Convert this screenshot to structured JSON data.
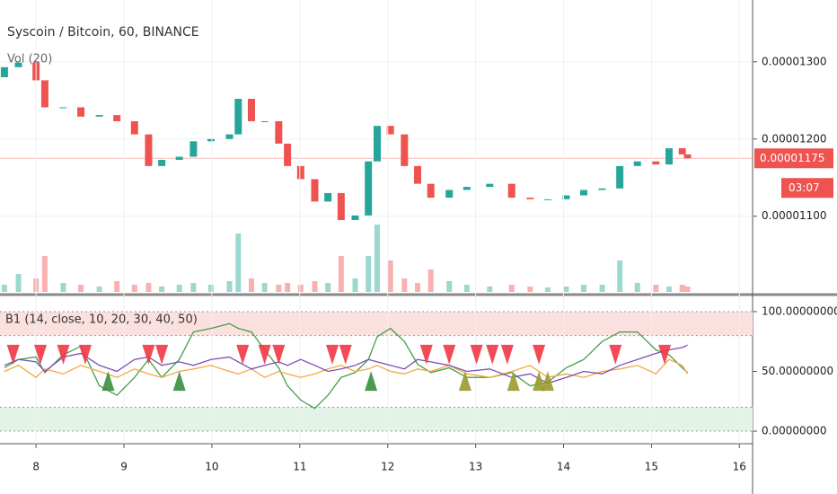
{
  "chart_data": [
    {
      "type": "candlestick",
      "title": "Syscoin / Bitcoin, 60, BINANCE",
      "subtitle": "Vol (20)",
      "xlim": [
        7.59,
        16.15
      ],
      "ylim": [
        1.002e-05,
        1.38e-05
      ],
      "yticks": [
        {
          "value": 1.1e-05,
          "label": "0.00001100"
        },
        {
          "value": 1.2e-05,
          "label": "0.00001200"
        },
        {
          "value": 1.3e-05,
          "label": "0.00001300"
        }
      ],
      "grid": true,
      "up_color": "#26a69a",
      "down_color": "#ef5350",
      "last_price": {
        "value": 1.175e-05,
        "label": "0.00001175"
      },
      "countdown": "03:07",
      "x": [
        7.64,
        7.8,
        8.0,
        8.1,
        8.31,
        8.51,
        8.72,
        8.92,
        9.12,
        9.28,
        9.43,
        9.63,
        9.79,
        9.99,
        10.2,
        10.3,
        10.45,
        10.6,
        10.76,
        10.86,
        11.01,
        11.17,
        11.32,
        11.47,
        11.63,
        11.78,
        11.88,
        12.03,
        12.19,
        12.34,
        12.49,
        12.7,
        12.9,
        13.16,
        13.41,
        13.62,
        13.82,
        14.03,
        14.23,
        14.44,
        14.64,
        14.84,
        15.05,
        15.2,
        15.35,
        15.41
      ],
      "open": [
        1.28e-05,
        1.293e-05,
        1.299e-05,
        1.276e-05,
        1.241e-05,
        1.241e-05,
        1.229e-05,
        1.231e-05,
        1.223e-05,
        1.206e-05,
        1.165e-05,
        1.173e-05,
        1.177e-05,
        1.197e-05,
        1.2e-05,
        1.206e-05,
        1.252e-05,
        1.223e-05,
        1.223e-05,
        1.194e-05,
        1.165e-05,
        1.148e-05,
        1.119e-05,
        1.13e-05,
        1.095e-05,
        1.101e-05,
        1.171e-05,
        1.217e-05,
        1.206e-05,
        1.165e-05,
        1.142e-05,
        1.124e-05,
        1.134e-05,
        1.138e-05,
        1.142e-05,
        1.124e-05,
        1.122e-05,
        1.122e-05,
        1.127e-05,
        1.134e-05,
        1.136e-05,
        1.165e-05,
        1.171e-05,
        1.167e-05,
        1.188e-05,
        1.18e-05
      ],
      "close": [
        1.293e-05,
        1.299e-05,
        1.276e-05,
        1.241e-05,
        1.241e-05,
        1.229e-05,
        1.231e-05,
        1.223e-05,
        1.206e-05,
        1.165e-05,
        1.173e-05,
        1.177e-05,
        1.197e-05,
        1.2e-05,
        1.206e-05,
        1.252e-05,
        1.223e-05,
        1.223e-05,
        1.194e-05,
        1.165e-05,
        1.148e-05,
        1.119e-05,
        1.13e-05,
        1.095e-05,
        1.101e-05,
        1.171e-05,
        1.217e-05,
        1.206e-05,
        1.165e-05,
        1.142e-05,
        1.124e-05,
        1.134e-05,
        1.138e-05,
        1.142e-05,
        1.124e-05,
        1.122e-05,
        1.122e-05,
        1.127e-05,
        1.134e-05,
        1.136e-05,
        1.165e-05,
        1.171e-05,
        1.167e-05,
        1.188e-05,
        1.18e-05,
        1.175e-05
      ],
      "volume": [
        8,
        20,
        15,
        40,
        10,
        8,
        6,
        12,
        8,
        10,
        6,
        8,
        10,
        8,
        12,
        65,
        15,
        10,
        8,
        10,
        8,
        12,
        10,
        40,
        15,
        40,
        75,
        35,
        15,
        10,
        25,
        12,
        8,
        6,
        8,
        6,
        5,
        6,
        8,
        8,
        35,
        10,
        8,
        6,
        8,
        6
      ],
      "volume_lim": [
        0,
        100
      ]
    },
    {
      "type": "line",
      "title": "B1 (14, close, 10, 20, 30, 40, 50)",
      "xlim": [
        7.59,
        16.15
      ],
      "xticks": [
        8,
        9,
        10,
        11,
        12,
        13,
        14,
        15,
        16
      ],
      "ylim": [
        -9,
        110.5
      ],
      "yticks": [
        {
          "value": 0,
          "label": "0.00000000"
        },
        {
          "value": 50,
          "label": "50.00000000"
        },
        {
          "value": 100,
          "label": "100.00000000"
        }
      ],
      "bands": [
        {
          "from": 80,
          "to": 100,
          "color": "#fbe0e0"
        },
        {
          "from": 0,
          "to": 20,
          "color": "#e3f3e5"
        }
      ],
      "x": [
        7.64,
        7.8,
        8.0,
        8.1,
        8.31,
        8.51,
        8.72,
        8.92,
        9.12,
        9.28,
        9.43,
        9.63,
        9.79,
        9.99,
        10.2,
        10.3,
        10.45,
        10.6,
        10.76,
        10.86,
        11.01,
        11.17,
        11.32,
        11.47,
        11.63,
        11.78,
        11.88,
        12.03,
        12.19,
        12.34,
        12.49,
        12.7,
        12.9,
        13.16,
        13.41,
        13.62,
        13.82,
        14.03,
        14.23,
        14.44,
        14.64,
        14.84,
        15.05,
        15.2,
        15.35,
        15.41
      ],
      "series": [
        {
          "color": "#43a047",
          "values": [
            53,
            60,
            62,
            49,
            64,
            71,
            38,
            30,
            45,
            60,
            45,
            60,
            83,
            86,
            90,
            86,
            83,
            68,
            53,
            38,
            26,
            19,
            30,
            45,
            49,
            60,
            79,
            86,
            75,
            56,
            49,
            53,
            45,
            45,
            49,
            38,
            41,
            53,
            60,
            75,
            83,
            83,
            68,
            64,
            53,
            49
          ]
        },
        {
          "color": "#f5a742",
          "values": [
            50,
            55,
            45,
            52,
            48,
            55,
            50,
            45,
            52,
            48,
            45,
            50,
            52,
            55,
            50,
            48,
            52,
            45,
            50,
            48,
            45,
            48,
            52,
            55,
            50,
            52,
            55,
            50,
            48,
            52,
            50,
            55,
            48,
            45,
            50,
            55,
            45,
            48,
            45,
            50,
            52,
            55,
            48,
            60,
            55,
            48
          ]
        },
        {
          "color": "#7b4fb3",
          "values": [
            55,
            60,
            58,
            50,
            62,
            65,
            55,
            50,
            60,
            62,
            55,
            58,
            55,
            60,
            62,
            58,
            52,
            55,
            58,
            55,
            60,
            55,
            50,
            52,
            55,
            60,
            58,
            55,
            52,
            60,
            58,
            55,
            50,
            52,
            45,
            48,
            40,
            45,
            50,
            48,
            55,
            60,
            65,
            68,
            70,
            72
          ]
        }
      ],
      "signals": [
        {
          "direction": "down",
          "color": "#f23645",
          "x": [
            7.74,
            8.05,
            8.31,
            8.56,
            9.28,
            9.43,
            10.35,
            10.6,
            10.76,
            11.37,
            11.52,
            12.44,
            12.7,
            13.01,
            13.19,
            13.36,
            13.72,
            14.59,
            15.15
          ],
          "values": [
            64,
            64,
            64,
            64,
            64,
            64,
            64,
            64,
            64,
            64,
            64,
            64,
            64,
            64,
            64,
            64,
            64,
            64,
            64
          ]
        },
        {
          "direction": "up",
          "color": "#388e3c",
          "x": [
            8.82,
            9.63,
            11.81
          ],
          "values": [
            42,
            42,
            42
          ]
        },
        {
          "direction": "up",
          "color": "#9a9a2e",
          "x": [
            12.88,
            13.43,
            13.72,
            13.82
          ],
          "values": [
            42,
            42,
            42,
            42
          ]
        }
      ]
    }
  ]
}
